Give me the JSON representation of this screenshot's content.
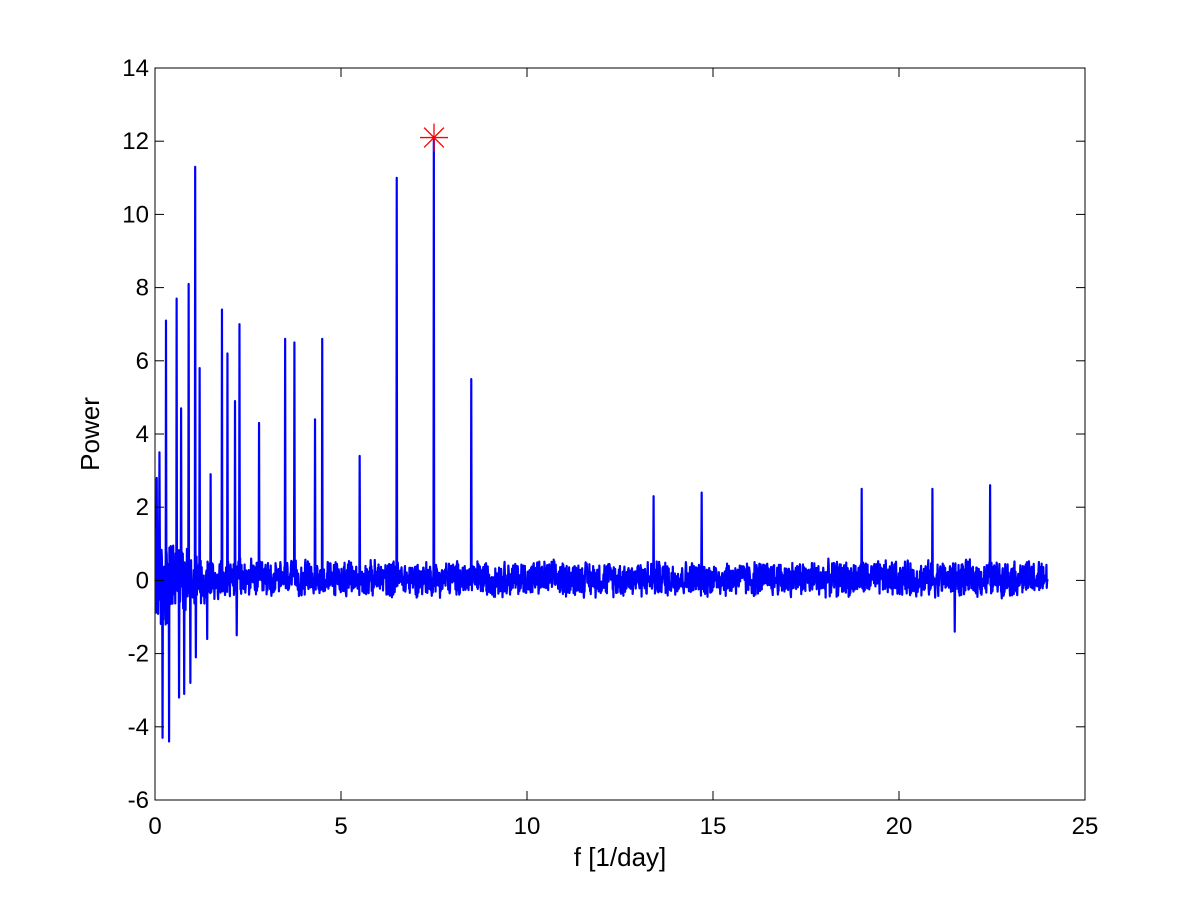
{
  "chart_data": {
    "type": "line",
    "title": "",
    "xlabel": "f [1/day]",
    "ylabel": "Power",
    "xlim": [
      0,
      25
    ],
    "ylim": [
      -6,
      14
    ],
    "x_ticks": [
      "0",
      "5",
      "10",
      "15",
      "20",
      "25"
    ],
    "y_ticks": [
      "-6",
      "-4",
      "-2",
      "0",
      "2",
      "4",
      "6",
      "8",
      "10",
      "12",
      "14"
    ],
    "grid": false,
    "legend": "none",
    "x_range": [
      0,
      24
    ],
    "line_color": "#0000ff",
    "peaks": [
      {
        "x": 0.05,
        "y": 2.8
      },
      {
        "x": 0.12,
        "y": 3.5
      },
      {
        "x": 0.3,
        "y": 7.1
      },
      {
        "x": 0.58,
        "y": 7.7
      },
      {
        "x": 0.7,
        "y": 4.7
      },
      {
        "x": 0.9,
        "y": 8.1
      },
      {
        "x": 1.08,
        "y": 11.3
      },
      {
        "x": 1.2,
        "y": 5.8
      },
      {
        "x": 1.5,
        "y": 2.9
      },
      {
        "x": 1.8,
        "y": 7.4
      },
      {
        "x": 1.95,
        "y": 6.2
      },
      {
        "x": 2.15,
        "y": 4.9
      },
      {
        "x": 2.27,
        "y": 7.0
      },
      {
        "x": 2.8,
        "y": 4.3
      },
      {
        "x": 3.5,
        "y": 6.6
      },
      {
        "x": 3.75,
        "y": 6.5
      },
      {
        "x": 4.3,
        "y": 4.4
      },
      {
        "x": 4.5,
        "y": 6.6
      },
      {
        "x": 5.5,
        "y": 3.4
      },
      {
        "x": 6.5,
        "y": 11.0
      },
      {
        "x": 7.5,
        "y": 12.1
      },
      {
        "x": 8.5,
        "y": 5.5
      },
      {
        "x": 13.4,
        "y": 2.3
      },
      {
        "x": 14.7,
        "y": 2.4
      },
      {
        "x": 19.0,
        "y": 2.5
      },
      {
        "x": 20.9,
        "y": 2.5
      },
      {
        "x": 22.45,
        "y": 2.6
      }
    ],
    "troughs": [
      {
        "x": 0.2,
        "y": -4.3
      },
      {
        "x": 0.38,
        "y": -4.4
      },
      {
        "x": 0.65,
        "y": -3.2
      },
      {
        "x": 0.78,
        "y": -3.1
      },
      {
        "x": 0.95,
        "y": -2.8
      },
      {
        "x": 1.1,
        "y": -2.1
      },
      {
        "x": 1.4,
        "y": -1.6
      },
      {
        "x": 2.2,
        "y": -1.5
      },
      {
        "x": 21.5,
        "y": -1.4
      }
    ],
    "marker": {
      "x": 7.5,
      "y": 12.1,
      "symbol": "asterisk",
      "color": "#ff0000"
    }
  }
}
